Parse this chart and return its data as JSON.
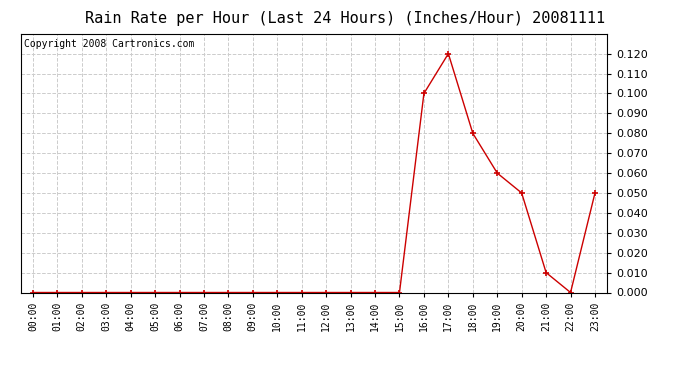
{
  "title": "Rain Rate per Hour (Last 24 Hours) (Inches/Hour) 20081111",
  "copyright": "Copyright 2008 Cartronics.com",
  "x_labels": [
    "00:00",
    "01:00",
    "02:00",
    "03:00",
    "04:00",
    "05:00",
    "06:00",
    "07:00",
    "08:00",
    "09:00",
    "10:00",
    "11:00",
    "12:00",
    "13:00",
    "14:00",
    "15:00",
    "16:00",
    "17:00",
    "18:00",
    "19:00",
    "20:00",
    "21:00",
    "22:00",
    "23:00"
  ],
  "y_values": [
    0.0,
    0.0,
    0.0,
    0.0,
    0.0,
    0.0,
    0.0,
    0.0,
    0.0,
    0.0,
    0.0,
    0.0,
    0.0,
    0.0,
    0.0,
    0.0,
    0.1,
    0.12,
    0.08,
    0.06,
    0.05,
    0.01,
    0.0,
    0.05
  ],
  "line_color": "#cc0000",
  "marker_color": "#cc0000",
  "bg_color": "#ffffff",
  "plot_bg_color": "#ffffff",
  "grid_color": "#cccccc",
  "ylim": [
    0.0,
    0.13
  ],
  "yticks": [
    0.0,
    0.01,
    0.02,
    0.03,
    0.04,
    0.05,
    0.06,
    0.07,
    0.08,
    0.09,
    0.1,
    0.11,
    0.12
  ],
  "title_fontsize": 11,
  "copyright_fontsize": 7,
  "tick_fontsize": 7,
  "ytick_fontsize": 8
}
